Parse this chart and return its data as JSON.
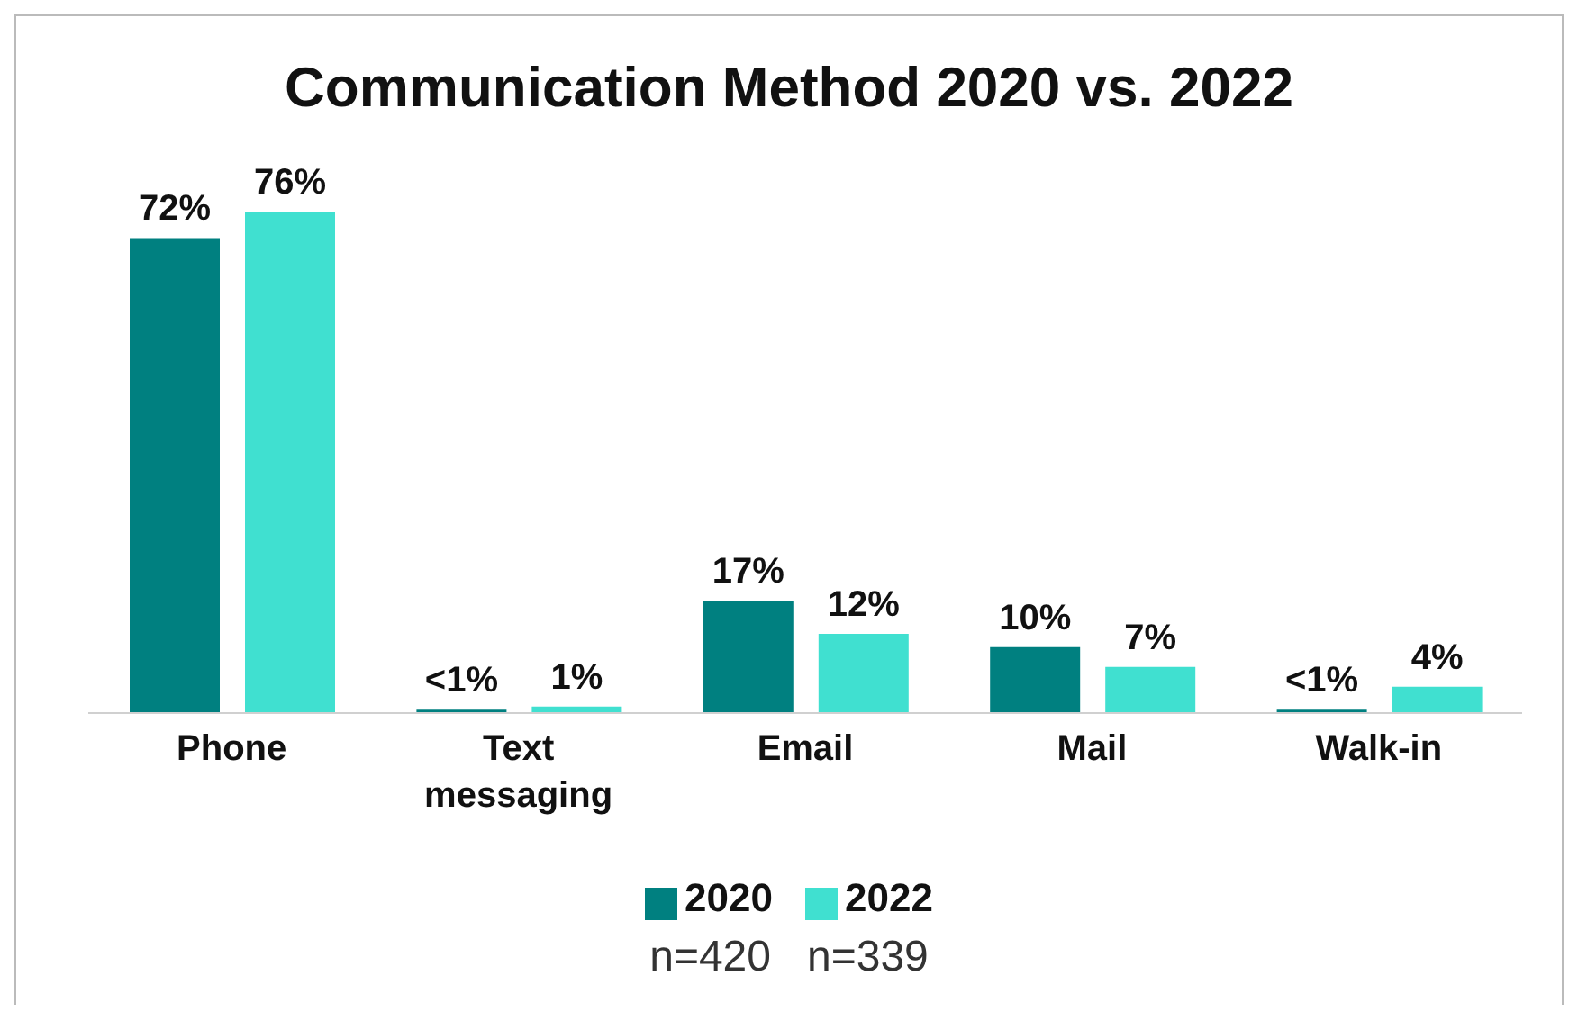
{
  "chart_data": {
    "type": "bar",
    "title": "Communication Method 2020 vs. 2022",
    "categories": [
      "Phone",
      "Text messaging",
      "Email",
      "Mail",
      "Walk-in"
    ],
    "series": [
      {
        "name": "2020",
        "color": "#008080",
        "values": [
          72,
          0.5,
          17,
          10,
          0.5
        ],
        "value_labels": [
          "72%",
          "<1%",
          "17%",
          "10%",
          "<1%"
        ]
      },
      {
        "name": "2022",
        "color": "#40e0d0",
        "values": [
          76,
          1,
          12,
          7,
          4
        ],
        "value_labels": [
          "76%",
          "1%",
          "12%",
          "7%",
          "4%"
        ]
      }
    ],
    "legend": "bottom",
    "grid": false,
    "annotations": [
      "n=420",
      "n=339"
    ]
  }
}
